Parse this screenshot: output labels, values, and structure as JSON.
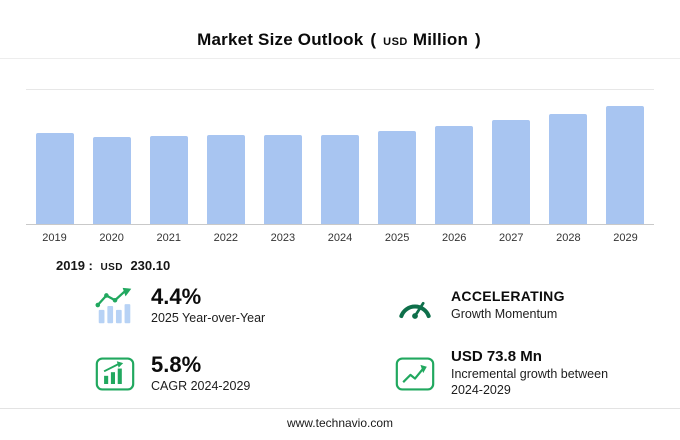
{
  "header": {
    "title": "Market Size Outlook",
    "open_paren": "(",
    "currency": "USD",
    "unit": "Million",
    "close_paren": ")"
  },
  "chart_data": {
    "type": "bar",
    "title": "Market Size Outlook (USD Million)",
    "categories": [
      "2019",
      "2020",
      "2021",
      "2022",
      "2023",
      "2024",
      "2025",
      "2026",
      "2027",
      "2028",
      "2029"
    ],
    "values": [
      230.1,
      221.9,
      224.0,
      225.2,
      226.0,
      226.5,
      236.5,
      248.8,
      263.2,
      280.3,
      300.3
    ],
    "ylabel": "USD Million",
    "ylim": [
      0,
      340
    ],
    "grid": "top-gridline-and-baseline",
    "legend": "none",
    "annotation": "2019 : USD 230.10"
  },
  "annotation": {
    "prefix": "2019 :",
    "currency": "USD",
    "value": "230.10"
  },
  "stats": {
    "yoy": {
      "value": "4.4%",
      "label": "2025 Year-over-Year"
    },
    "momentum": {
      "value": "ACCELERATING",
      "label": "Growth Momentum"
    },
    "cagr": {
      "value": "5.8%",
      "label": "CAGR 2024-2029"
    },
    "incremental": {
      "value": "USD 73.8 Mn",
      "label": "Incremental growth between 2024-2029"
    }
  },
  "footer": {
    "website": "www.technavio.com"
  },
  "colors": {
    "bar": "#a8c5f1",
    "green": "#21a85f",
    "bar_icon_blue": "#b7d2f5",
    "gauge_green": "#0e6f4a"
  }
}
